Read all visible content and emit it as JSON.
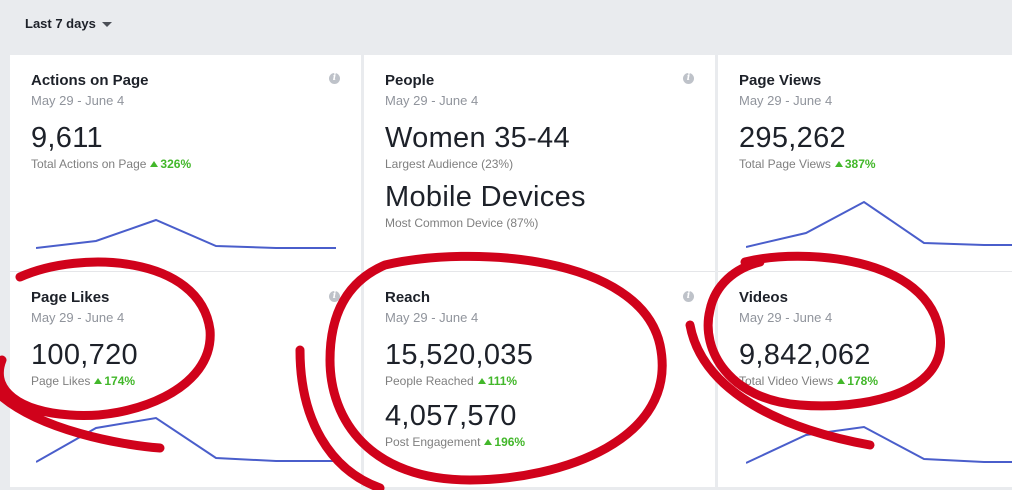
{
  "filter": {
    "range_label": "Last 7 days"
  },
  "cards": {
    "actions": {
      "title": "Actions on Page",
      "date": "May 29 - June 4",
      "value": "9,611",
      "sub_label": "Total Actions on Page",
      "change": "326%"
    },
    "page_likes": {
      "title": "Page Likes",
      "date": "May 29 - June 4",
      "value": "100,720",
      "sub_label": "Page Likes",
      "change": "174%"
    },
    "people": {
      "title": "People",
      "date": "May 29 - June 4",
      "audience_value": "Women 35-44",
      "audience_label": "Largest Audience (23%)",
      "device_value": "Mobile Devices",
      "device_label": "Most Common Device (87%)"
    },
    "reach": {
      "title": "Reach",
      "date": "May 29 - June 4",
      "value": "15,520,035",
      "sub_label": "People Reached",
      "change": "111%",
      "engagement_value": "4,057,570",
      "engagement_label": "Post Engagement",
      "engagement_change": "196%"
    },
    "page_views": {
      "title": "Page Views",
      "date": "May 29 - June 4",
      "value": "295,262",
      "sub_label": "Total Page Views",
      "change": "387%"
    },
    "videos": {
      "title": "Videos",
      "date": "May 29 - June 4",
      "value": "9,842,062",
      "sub_label": "Total Video Views",
      "change": "178%"
    }
  },
  "colors": {
    "sparkline": "#4a5ecb",
    "positive": "#42b72a",
    "annotation": "#d0021b"
  }
}
